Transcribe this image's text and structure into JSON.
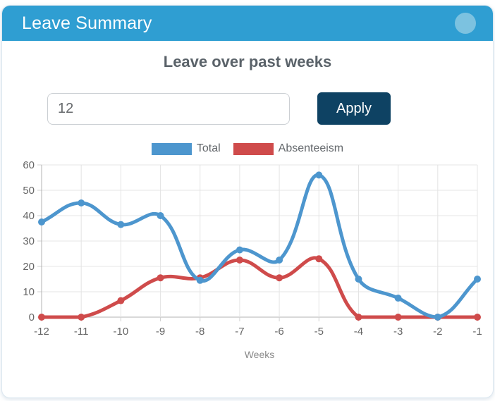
{
  "card": {
    "header": {
      "title": "Leave Summary"
    },
    "heading": "Leave over past weeks",
    "controls": {
      "weeks_input_value": "12",
      "apply_label": "Apply"
    }
  },
  "chart_data": {
    "type": "line",
    "x": [
      -12,
      -11,
      -10,
      -9,
      -8,
      -7,
      -6,
      -5,
      -4,
      -3,
      -2,
      -1
    ],
    "series": [
      {
        "name": "Total",
        "color": "#4D96CE",
        "values": [
          37.5,
          45,
          36.5,
          40,
          14.5,
          26.5,
          22.5,
          56,
          15,
          7.5,
          0,
          15
        ]
      },
      {
        "name": "Absenteeism",
        "color": "#CF4B4B",
        "values": [
          0,
          0,
          6.5,
          15.5,
          15.5,
          22.5,
          15.5,
          23,
          0,
          0,
          0,
          0
        ]
      }
    ],
    "xlabel": "Weeks",
    "ylabel": "",
    "ylim": [
      0,
      60
    ],
    "ytick_step": 10,
    "yticks": [
      0,
      10,
      20,
      30,
      40,
      50,
      60
    ],
    "grid": true,
    "legend_position": "top",
    "line_tension": 0.4
  },
  "colors": {
    "header_bg": "#2F9ED2",
    "header_circle": "#7CC2E0",
    "heading_text": "#5A6269",
    "button_bg": "#0E4263",
    "button_text": "#FFFFFF",
    "input_border": "#CBCFD3",
    "input_text": "#66696C",
    "card_border": "#DCE7F0",
    "grid": "#E4E4E4",
    "axis": "#B3B3B3",
    "tick": "#D0D0D0",
    "tick_text": "#666666",
    "axis_title_text": "#8A8A8A"
  }
}
